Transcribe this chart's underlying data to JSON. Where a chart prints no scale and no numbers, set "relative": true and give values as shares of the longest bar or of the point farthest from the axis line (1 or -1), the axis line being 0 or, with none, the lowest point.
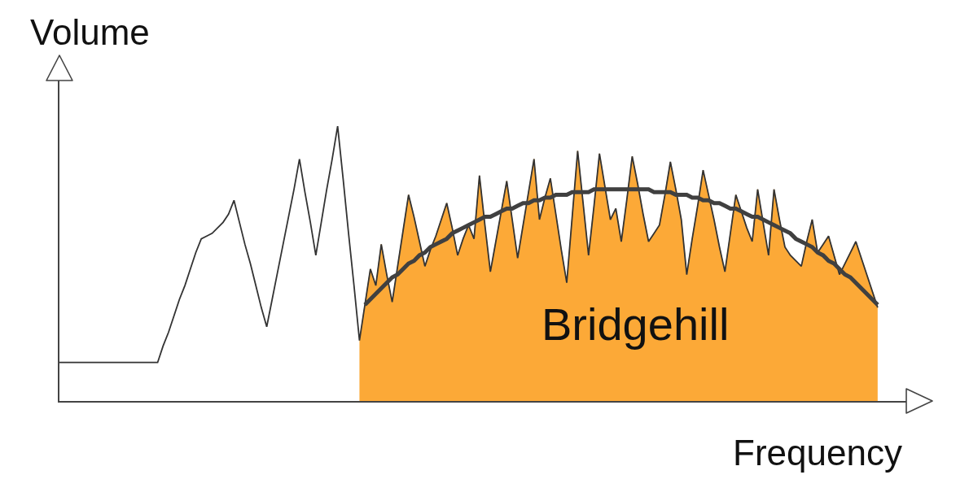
{
  "chart_data": {
    "type": "line",
    "xlabel": "Frequency",
    "ylabel": "Volume",
    "relative": true,
    "legend": false,
    "categories": [
      null,
      null,
      null,
      null,
      null,
      null,
      null,
      null,
      null,
      null,
      null,
      null,
      null,
      null,
      null,
      null,
      null,
      null,
      null,
      null,
      null,
      null,
      null,
      null,
      null,
      null,
      null,
      null,
      null,
      null,
      null,
      null,
      null,
      null,
      null,
      null,
      null,
      null,
      null,
      null,
      null,
      null,
      null,
      null,
      null,
      null,
      null,
      null,
      null,
      null,
      null,
      null,
      null,
      null,
      null,
      null,
      null,
      null,
      null,
      null,
      null,
      null,
      null,
      null,
      null,
      null,
      null,
      null,
      null,
      null,
      null,
      null,
      null,
      null,
      null,
      null,
      null,
      null,
      null,
      null,
      null,
      null,
      null,
      null,
      null,
      null,
      null,
      null,
      null,
      null,
      null,
      null,
      null,
      null,
      null,
      null,
      null,
      null,
      null,
      null,
      null,
      null,
      null,
      null,
      null,
      null,
      null,
      null,
      null,
      null,
      null,
      null,
      null,
      null,
      null,
      null,
      null,
      null,
      null,
      null,
      null,
      null,
      null,
      null,
      null,
      null,
      null,
      null,
      null,
      null,
      null,
      null,
      null,
      null,
      null,
      null,
      null,
      null,
      null,
      null,
      null,
      null,
      null,
      null,
      null,
      null,
      null,
      null,
      null,
      null,
      null
    ],
    "series": [
      {
        "name": "Bridgehill",
        "type": "area",
        "color": "#fca937",
        "values": [
          null,
          null,
          null,
          null,
          null,
          null,
          null,
          null,
          null,
          null,
          null,
          null,
          null,
          null,
          null,
          null,
          null,
          null,
          null,
          null,
          null,
          null,
          null,
          null,
          null,
          null,
          null,
          null,
          null,
          null,
          null,
          null,
          null,
          null,
          null,
          null,
          null,
          null,
          null,
          null,
          null,
          null,
          null,
          null,
          null,
          null,
          null,
          null,
          null,
          null,
          null,
          null,
          null,
          null,
          null,
          0.22,
          0.35,
          0.48,
          0.42,
          0.57,
          0.46,
          0.36,
          0.49,
          0.62,
          0.75,
          0.67,
          0.58,
          0.49,
          0.55,
          0.6,
          0.66,
          0.72,
          0.63,
          0.53,
          0.59,
          0.64,
          0.59,
          0.82,
          0.64,
          0.47,
          0.58,
          0.69,
          0.8,
          0.66,
          0.52,
          0.64,
          0.76,
          0.88,
          0.66,
          0.74,
          0.81,
          0.68,
          0.55,
          0.43,
          0.67,
          0.91,
          0.72,
          0.53,
          0.71,
          0.9,
          0.78,
          0.66,
          0.7,
          0.58,
          0.73,
          0.89,
          0.79,
          0.68,
          0.58,
          0.61,
          0.64,
          0.75,
          0.87,
          0.77,
          0.66,
          0.46,
          0.59,
          0.71,
          0.84,
          0.75,
          0.66,
          0.56,
          0.47,
          0.61,
          0.75,
          0.69,
          0.63,
          0.58,
          0.77,
          0.65,
          0.53,
          0.77,
          0.66,
          0.56,
          0.53,
          0.51,
          0.49,
          0.58,
          0.66,
          0.54,
          0.57,
          0.6,
          0.53,
          0.46,
          0.5,
          0.54,
          0.58,
          0.52,
          0.46,
          0.4,
          0.34
        ]
      },
      {
        "color": "#333333",
        "values": [
          0.14,
          0.14,
          0.14,
          0.14,
          0.14,
          0.14,
          0.14,
          0.14,
          0.14,
          0.14,
          0.14,
          0.14,
          0.14,
          0.14,
          0.14,
          0.14,
          0.14,
          0.14,
          0.14,
          0.2,
          0.25,
          0.31,
          0.37,
          0.42,
          0.48,
          0.54,
          0.59,
          0.6,
          0.61,
          0.63,
          0.65,
          0.68,
          0.73,
          0.65,
          0.57,
          0.5,
          0.42,
          0.34,
          0.27,
          0.37,
          0.47,
          0.57,
          0.67,
          0.77,
          0.88,
          0.76,
          0.65,
          0.53,
          0.65,
          0.77,
          0.88,
          1.0,
          0.81,
          0.61,
          0.42,
          0.22,
          0.35,
          0.48,
          0.42,
          0.57,
          0.46,
          0.36,
          0.49,
          0.62,
          0.75,
          0.67,
          0.58,
          0.49,
          0.55,
          0.6,
          0.66,
          0.72,
          0.63,
          0.53,
          0.59,
          0.64,
          0.59,
          0.82,
          0.64,
          0.47,
          0.58,
          0.69,
          0.8,
          0.66,
          0.52,
          0.64,
          0.76,
          0.88,
          0.66,
          0.74,
          0.81,
          0.68,
          0.55,
          0.43,
          0.67,
          0.91,
          0.72,
          0.53,
          0.71,
          0.9,
          0.78,
          0.66,
          0.7,
          0.58,
          0.73,
          0.89,
          0.79,
          0.68,
          0.58,
          0.61,
          0.64,
          0.75,
          0.87,
          0.77,
          0.66,
          0.46,
          0.59,
          0.71,
          0.84,
          0.75,
          0.66,
          0.56,
          0.47,
          0.61,
          0.75,
          0.69,
          0.63,
          0.58,
          0.77,
          0.65,
          0.53,
          0.77,
          0.66,
          0.56,
          0.53,
          0.51,
          0.49,
          0.58,
          0.66,
          0.54,
          0.57,
          0.6,
          0.53,
          0.46,
          0.5,
          0.54,
          0.58,
          0.52,
          0.46,
          0.4,
          0.34
        ]
      },
      {
        "color": "#404040",
        "values": [
          null,
          null,
          null,
          null,
          null,
          null,
          null,
          null,
          null,
          null,
          null,
          null,
          null,
          null,
          null,
          null,
          null,
          null,
          null,
          null,
          null,
          null,
          null,
          null,
          null,
          null,
          null,
          null,
          null,
          null,
          null,
          null,
          null,
          null,
          null,
          null,
          null,
          null,
          null,
          null,
          null,
          null,
          null,
          null,
          null,
          null,
          null,
          null,
          null,
          null,
          null,
          null,
          null,
          null,
          null,
          null,
          0.35,
          0.37,
          0.39,
          0.41,
          0.43,
          0.45,
          0.46,
          0.48,
          0.5,
          0.51,
          0.53,
          0.54,
          0.56,
          0.57,
          0.58,
          0.59,
          0.61,
          0.62,
          0.63,
          0.64,
          0.65,
          0.66,
          0.67,
          0.67,
          0.68,
          0.69,
          0.7,
          0.7,
          0.71,
          0.72,
          0.72,
          0.73,
          0.73,
          0.74,
          0.74,
          0.75,
          0.75,
          0.75,
          0.76,
          0.76,
          0.76,
          0.76,
          0.77,
          0.77,
          0.77,
          0.77,
          0.77,
          0.77,
          0.77,
          0.77,
          0.77,
          0.77,
          0.77,
          0.76,
          0.76,
          0.76,
          0.76,
          0.75,
          0.75,
          0.75,
          0.74,
          0.74,
          0.73,
          0.73,
          0.72,
          0.72,
          0.71,
          0.7,
          0.7,
          0.69,
          0.68,
          0.67,
          0.67,
          0.66,
          0.65,
          0.64,
          0.63,
          0.62,
          0.61,
          0.59,
          0.58,
          0.57,
          0.56,
          0.54,
          0.53,
          0.51,
          0.5,
          0.48,
          0.46,
          0.45,
          0.43,
          0.41,
          0.39,
          0.37,
          0.35
        ]
      }
    ]
  }
}
